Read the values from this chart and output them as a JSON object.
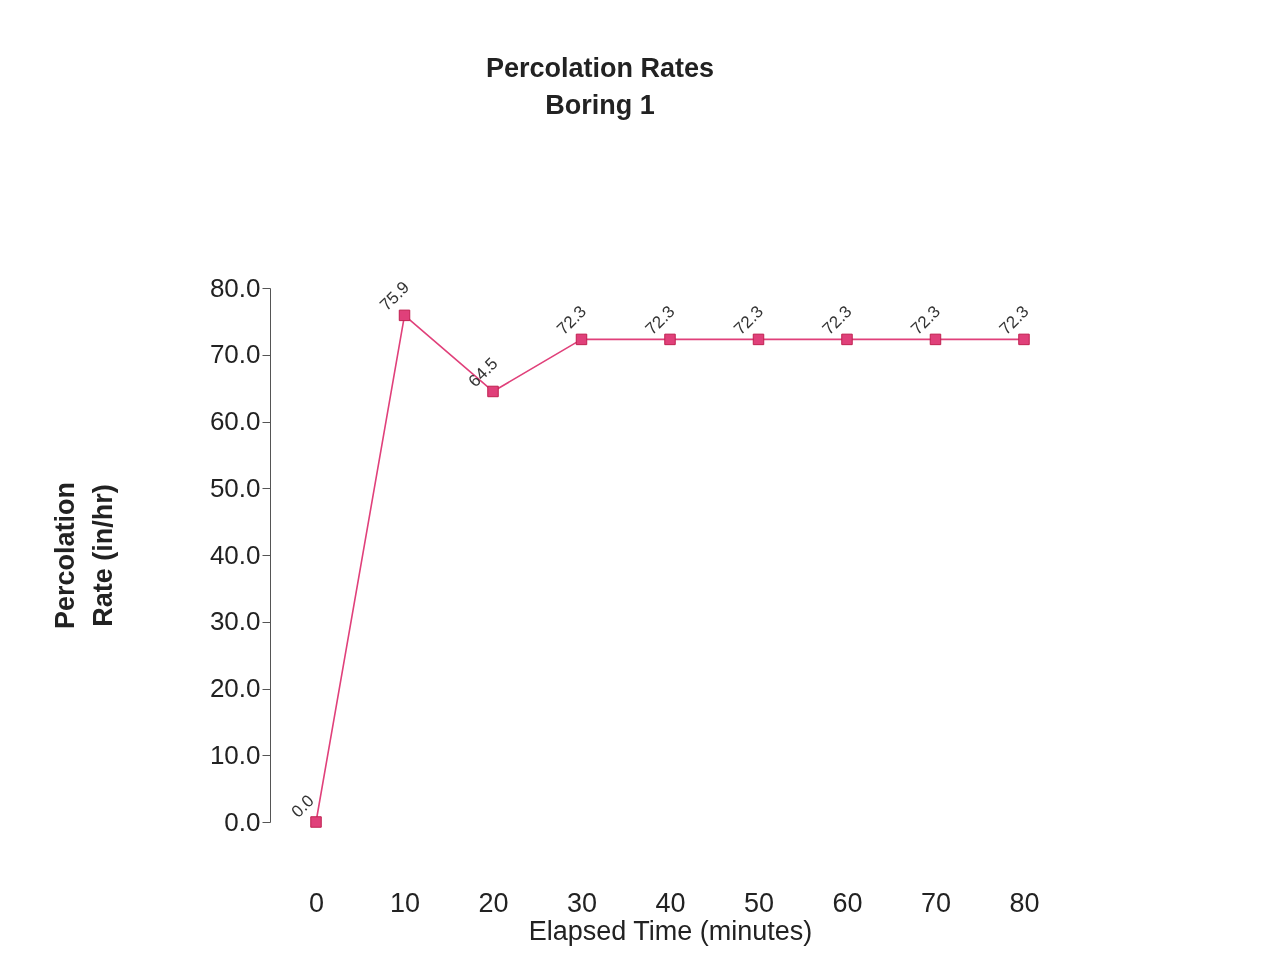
{
  "chart_data": {
    "type": "line",
    "title": "Percolation Rates",
    "subtitle": "Boring 1",
    "xlabel": "Elapsed Time (minutes)",
    "ylabel": "Percolation Rate  (in/hr)",
    "categories": [
      "0",
      "10",
      "20",
      "30",
      "40",
      "50",
      "60",
      "70",
      "80"
    ],
    "series": [
      {
        "color": "#e0407a",
        "values": [
          0,
          75.9,
          64.5,
          72.3,
          72.3,
          72.3,
          72.3,
          72.3,
          72.3
        ],
        "value_labels": [
          "0.0",
          "75.9",
          "64.5",
          "72.3",
          "72.3",
          "72.3",
          "72.3",
          "72.3",
          "72.3"
        ]
      }
    ],
    "ylim": [
      0,
      80
    ],
    "yticks": [
      {
        "value": 0,
        "label": "0.0"
      },
      {
        "value": 10,
        "label": "10.0"
      },
      {
        "value": 20,
        "label": "20.0"
      },
      {
        "value": 30,
        "label": "30.0"
      },
      {
        "value": 40,
        "label": "40.0"
      },
      {
        "value": 50,
        "label": "50.0"
      },
      {
        "value": 60,
        "label": "60.0"
      },
      {
        "value": 70,
        "label": "70.0"
      },
      {
        "value": 80,
        "label": "80.0"
      }
    ],
    "grid": false,
    "legend": false,
    "marker": "square",
    "line_style": "solid"
  }
}
